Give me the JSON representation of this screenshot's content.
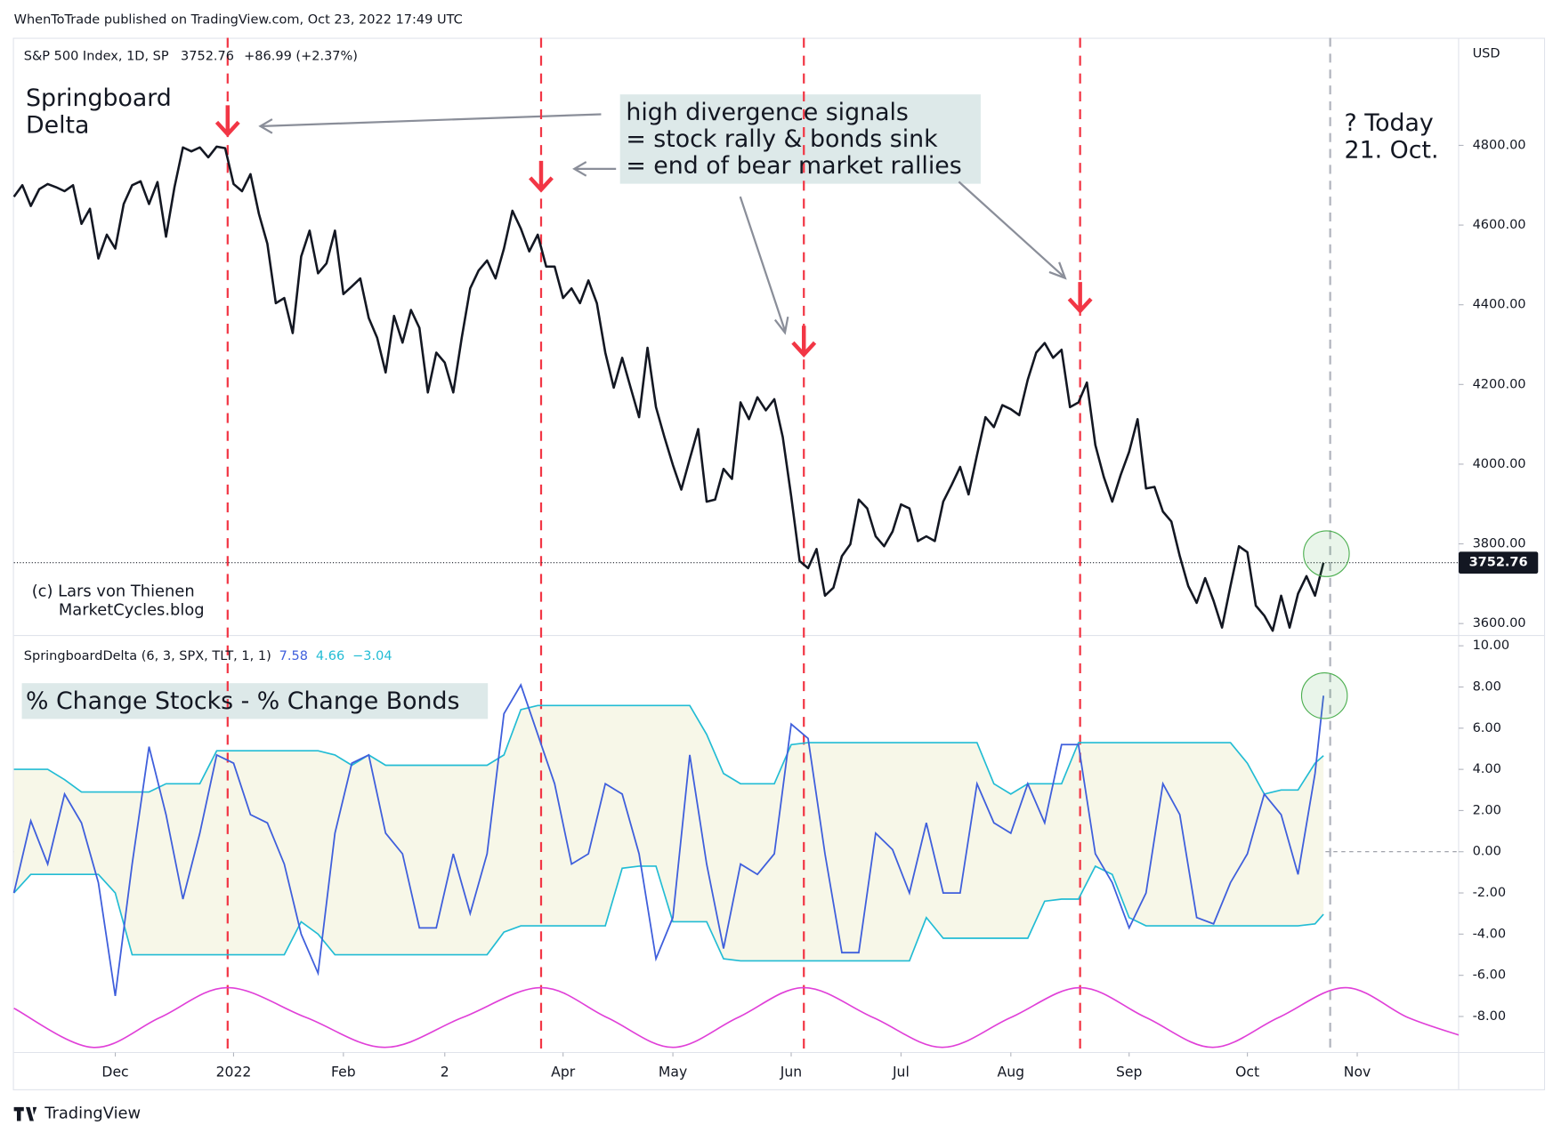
{
  "header": {
    "publisher": "WhenToTrade published on TradingView.com, Oct 23, 2022 17:49 UTC",
    "footer": "TradingView"
  },
  "chart_data": [
    {
      "type": "line",
      "title": "S&P 500 Index, 1D, SP",
      "quote": [
        "3752.76",
        "+86.99 (+2.37%)"
      ],
      "y_unit": "USD",
      "last_label": "3752.76",
      "color": "#131722",
      "signal_color": "#f23645",
      "xlim": [
        0,
        171
      ],
      "ylim": [
        3570,
        5070
      ],
      "yticks": [
        {
          "value": 3600,
          "label": "3600.00"
        },
        {
          "value": 3800,
          "label": "3800.00"
        },
        {
          "value": 4000,
          "label": "4000.00"
        },
        {
          "value": 4200,
          "label": "4200.00"
        },
        {
          "value": 4400,
          "label": "4400.00"
        },
        {
          "value": 4600,
          "label": "4600.00"
        },
        {
          "value": 4800,
          "label": "4800.00"
        }
      ],
      "signals": [
        25.3,
        62.4,
        93.5,
        126.2
      ],
      "today": 155.8,
      "annotations": {
        "name": [
          "Springboard",
          "Delta"
        ],
        "callout": [
          "high divergence signals",
          "= stock rally & bonds sink",
          "= end of bear market rallies"
        ],
        "today": [
          "? Today",
          "21. Oct."
        ],
        "credit": [
          "(c) Lars von Thienen",
          "MarketCycles.blog"
        ]
      },
      "values": [
        4671,
        4700,
        4648,
        4690,
        4703,
        4695,
        4685,
        4700,
        4603,
        4641,
        4516,
        4576,
        4541,
        4653,
        4700,
        4710,
        4653,
        4708,
        4571,
        4695,
        4795,
        4785,
        4795,
        4770,
        4797,
        4793,
        4703,
        4685,
        4728,
        4628,
        4553,
        4404,
        4417,
        4329,
        4521,
        4586,
        4479,
        4504,
        4586,
        4427,
        4446,
        4466,
        4367,
        4317,
        4230,
        4372,
        4305,
        4387,
        4342,
        4180,
        4280,
        4255,
        4180,
        4317,
        4441,
        4486,
        4511,
        4466,
        4541,
        4636,
        4591,
        4534,
        4576,
        4496,
        4496,
        4417,
        4441,
        4404,
        4461,
        4404,
        4280,
        4192,
        4267,
        4192,
        4118,
        4292,
        4143,
        4068,
        3998,
        3936,
        4013,
        4088,
        3906,
        3911,
        3988,
        3963,
        4155,
        4113,
        4168,
        4135,
        4163,
        4068,
        3919,
        3757,
        3739,
        3787,
        3670,
        3690,
        3769,
        3799,
        3911,
        3889,
        3819,
        3794,
        3831,
        3899,
        3889,
        3807,
        3819,
        3807,
        3906,
        3948,
        3993,
        3924,
        4023,
        4118,
        4093,
        4148,
        4138,
        4123,
        4212,
        4280,
        4304,
        4267,
        4287,
        4143,
        4155,
        4205,
        4048,
        3968,
        3906,
        3973,
        4031,
        4113,
        3939,
        3943,
        3881,
        3856,
        3769,
        3694,
        3652,
        3714,
        3657,
        3590,
        3694,
        3794,
        3779,
        3645,
        3620,
        3582,
        3670,
        3590,
        3675,
        3719,
        3670,
        3752.76
      ]
    },
    {
      "type": "line",
      "title": "SpringboardDelta (6, 3, SPX, TLT, 1, 1)",
      "subtitle": "% Change Stocks - % Change Bonds",
      "xlim": [
        0,
        171
      ],
      "ylim": [
        -9.75,
        10.5
      ],
      "yticks": [
        {
          "value": -8,
          "label": "-8.00"
        },
        {
          "value": -6,
          "label": "-6.00"
        },
        {
          "value": -4,
          "label": "-4.00"
        },
        {
          "value": -2,
          "label": "-2.00"
        },
        {
          "value": 0,
          "label": "0.00"
        },
        {
          "value": 2,
          "label": "2.00"
        },
        {
          "value": 4,
          "label": "4.00"
        },
        {
          "value": 6,
          "label": "6.00"
        },
        {
          "value": 8,
          "label": "8.00"
        },
        {
          "value": 10,
          "label": "10.00"
        }
      ],
      "xticks": [
        {
          "value": 12,
          "label": "Dec"
        },
        {
          "value": 26,
          "label": "2022"
        },
        {
          "value": 39,
          "label": "Feb"
        },
        {
          "value": 51,
          "label": "2"
        },
        {
          "value": 65,
          "label": "Apr"
        },
        {
          "value": 78,
          "label": "May"
        },
        {
          "value": 92,
          "label": "Jun"
        },
        {
          "value": 105,
          "label": "Jul"
        },
        {
          "value": 118,
          "label": "Aug"
        },
        {
          "value": 132,
          "label": "Sep"
        },
        {
          "value": 146,
          "label": "Oct"
        },
        {
          "value": 159,
          "label": "Nov"
        }
      ],
      "fill": "#f7f7e8",
      "x": [
        0,
        2,
        4,
        6,
        8,
        10,
        12,
        14,
        16,
        18,
        20,
        22,
        24,
        26,
        28,
        30,
        32,
        34,
        36,
        38,
        40,
        42,
        44,
        46,
        48,
        50,
        52,
        54,
        56,
        58,
        60,
        62,
        64,
        66,
        68,
        70,
        72,
        74,
        76,
        78,
        80,
        82,
        84,
        86,
        88,
        90,
        92,
        94,
        96,
        98,
        100,
        102,
        104,
        106,
        108,
        110,
        112,
        114,
        116,
        118,
        120,
        122,
        124,
        126,
        128,
        130,
        132,
        134,
        136,
        138,
        140,
        142,
        144,
        146,
        148,
        150,
        152,
        154,
        155
      ],
      "series": [
        {
          "color": "#3f5fdc",
          "legend_value": "7.58",
          "values": [
            -2.0,
            1.5,
            -0.6,
            2.8,
            1.4,
            -1.5,
            -7.0,
            -0.6,
            5.1,
            1.8,
            -2.3,
            0.9,
            4.7,
            4.3,
            1.8,
            1.4,
            -0.6,
            -4.0,
            -5.9,
            0.9,
            4.3,
            4.7,
            0.9,
            -0.1,
            -3.7,
            -3.7,
            -0.1,
            -3.0,
            -0.1,
            6.7,
            8.1,
            5.7,
            3.3,
            -0.6,
            -0.1,
            3.3,
            2.8,
            -0.1,
            -5.2,
            -3.2,
            4.7,
            -0.6,
            -4.7,
            -0.6,
            -1.1,
            -0.1,
            6.2,
            5.5,
            -0.1,
            -4.9,
            -4.9,
            0.9,
            0.1,
            -2.0,
            1.4,
            -2.0,
            -2.0,
            3.3,
            1.4,
            0.9,
            3.3,
            1.4,
            5.2,
            5.2,
            -0.1,
            -1.5,
            -3.7,
            -2.0,
            3.3,
            1.8,
            -3.2,
            -3.5,
            -1.5,
            -0.1,
            2.8,
            1.8,
            -1.1,
            3.8,
            7.58
          ]
        },
        {
          "color": "#22bcd4",
          "legend_value": "4.66",
          "values": [
            4.0,
            4.0,
            4.0,
            3.5,
            2.9,
            2.9,
            2.9,
            2.9,
            2.9,
            3.3,
            3.3,
            3.3,
            4.9,
            4.9,
            4.9,
            4.9,
            4.9,
            4.9,
            4.9,
            4.7,
            4.2,
            4.7,
            4.2,
            4.2,
            4.2,
            4.2,
            4.2,
            4.2,
            4.2,
            4.7,
            6.9,
            7.1,
            7.1,
            7.1,
            7.1,
            7.1,
            7.1,
            7.1,
            7.1,
            7.1,
            7.1,
            5.7,
            3.8,
            3.3,
            3.3,
            3.3,
            5.2,
            5.3,
            5.3,
            5.3,
            5.3,
            5.3,
            5.3,
            5.3,
            5.3,
            5.3,
            5.3,
            5.3,
            3.3,
            2.8,
            3.3,
            3.3,
            3.3,
            5.3,
            5.3,
            5.3,
            5.3,
            5.3,
            5.3,
            5.3,
            5.3,
            5.3,
            5.3,
            4.3,
            2.8,
            3.0,
            3.0,
            4.3,
            4.66
          ]
        },
        {
          "color": "#22bcd4",
          "legend_value": "−3.04",
          "values": [
            -2.0,
            -1.1,
            -1.1,
            -1.1,
            -1.1,
            -1.1,
            -2.0,
            -5.0,
            -5.0,
            -5.0,
            -5.0,
            -5.0,
            -5.0,
            -5.0,
            -5.0,
            -5.0,
            -5.0,
            -3.4,
            -4.0,
            -5.0,
            -5.0,
            -5.0,
            -5.0,
            -5.0,
            -5.0,
            -5.0,
            -5.0,
            -5.0,
            -5.0,
            -3.9,
            -3.6,
            -3.6,
            -3.6,
            -3.6,
            -3.6,
            -3.6,
            -0.8,
            -0.7,
            -0.7,
            -3.4,
            -3.4,
            -3.4,
            -5.2,
            -5.3,
            -5.3,
            -5.3,
            -5.3,
            -5.3,
            -5.3,
            -5.3,
            -5.3,
            -5.3,
            -5.3,
            -5.3,
            -3.2,
            -4.2,
            -4.2,
            -4.2,
            -4.2,
            -4.2,
            -4.2,
            -2.4,
            -2.3,
            -2.3,
            -0.7,
            -1.1,
            -3.2,
            -3.6,
            -3.6,
            -3.6,
            -3.6,
            -3.6,
            -3.6,
            -3.6,
            -3.6,
            -3.6,
            -3.6,
            -3.5,
            -3.04
          ]
        }
      ],
      "cycle": {
        "color": "#e040d8",
        "x": [
          0,
          9.3,
          17.3,
          25.3,
          34.6,
          43.9,
          53.1,
          62.4,
          70.2,
          78,
          85.7,
          93.5,
          101.7,
          109.9,
          118,
          126.2,
          134,
          141.9,
          149.7,
          157.6,
          165,
          171
        ],
        "values": [
          -7.6,
          -9.5,
          -8.05,
          -6.6,
          -8.05,
          -9.5,
          -8.05,
          -6.6,
          -8.05,
          -9.5,
          -8.05,
          -6.6,
          -8.05,
          -9.5,
          -8.05,
          -6.6,
          -8.05,
          -9.5,
          -8.05,
          -6.6,
          -8.05,
          -8.9
        ]
      }
    }
  ]
}
